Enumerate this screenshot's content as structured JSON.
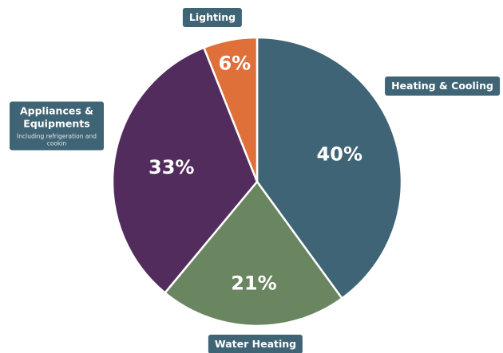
{
  "chart_data": {
    "type": "pie",
    "categories": [
      "Heating & Cooling",
      "Water Heating",
      "Appliances & Equipments",
      "Lighting"
    ],
    "values": [
      40,
      21,
      33,
      6
    ],
    "value_labels": [
      "40%",
      "21%",
      "33%",
      "6%"
    ],
    "category_notes": [
      null,
      null,
      "Including refrigeration and cookin",
      null
    ],
    "colors": [
      "#3f6475",
      "#6a8660",
      "#532c5e",
      "#e07039"
    ],
    "label_color": "#3f6475"
  }
}
